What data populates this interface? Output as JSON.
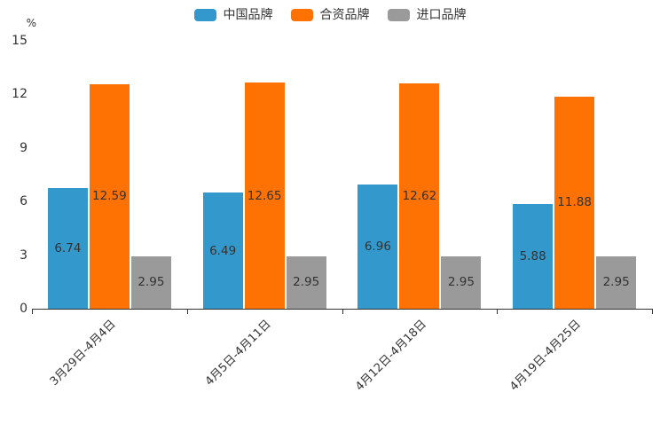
{
  "chart_data": {
    "type": "bar",
    "title": "",
    "ylabel": "%",
    "xlabel": "",
    "categories": [
      "3月29日-4月4日",
      "4月5日-4月11日",
      "4月12日-4月18日",
      "4月19日-4月25日"
    ],
    "series": [
      {
        "name": "中国品牌",
        "color": "#3398CC",
        "values": [
          6.74,
          6.49,
          6.96,
          5.88
        ]
      },
      {
        "name": "合资品牌",
        "color": "#FE7103",
        "values": [
          12.59,
          12.65,
          12.62,
          11.88
        ]
      },
      {
        "name": "进口品牌",
        "color": "#9A9A9A",
        "values": [
          2.95,
          2.95,
          2.95,
          2.95
        ]
      }
    ],
    "yticks": [
      0,
      3,
      6,
      9,
      12,
      15
    ],
    "ylim": [
      0,
      15
    ],
    "grid": false,
    "legend_position": "top",
    "label_position": "inside-middle",
    "axis_color": "#333333",
    "text_color": "#333333",
    "background_color": "#ffffff"
  }
}
